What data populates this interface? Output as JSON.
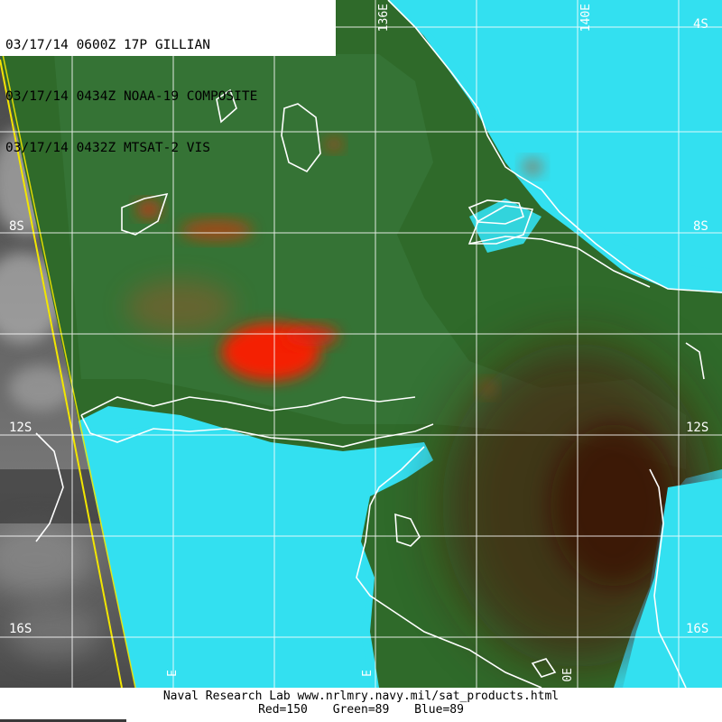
{
  "header": {
    "line1": "03/17/14 0600Z 17P GILLIAN",
    "line2": "03/17/14 0434Z NOAA-19 COMPOSITE",
    "line3": "03/17/14 0432Z MTSAT-2 VIS"
  },
  "map": {
    "lat_labels_left": [
      "8S",
      "12S",
      "16S"
    ],
    "lat_labels_right": [
      "4S",
      "8S",
      "12S",
      "16S"
    ],
    "lon_labels_top": [
      "136E",
      "140E"
    ],
    "lon_labels_bottom": [
      "E",
      "E",
      "0E"
    ],
    "colors": {
      "ocean": "#33e0f0",
      "land": "#2f6a2a",
      "land_dark": "#5a0e08",
      "convection": "#ff1a00",
      "vis_background": "#6b6b6b",
      "swath_edge": "#f2e600",
      "coastline": "#ffffff",
      "grid": "#ffffff"
    }
  },
  "footer": {
    "credit": "Naval Research Lab  www.nrlmry.navy.mil/sat_products.html",
    "red": "Red=150",
    "green": "Green=89",
    "blue": "Blue=89"
  }
}
